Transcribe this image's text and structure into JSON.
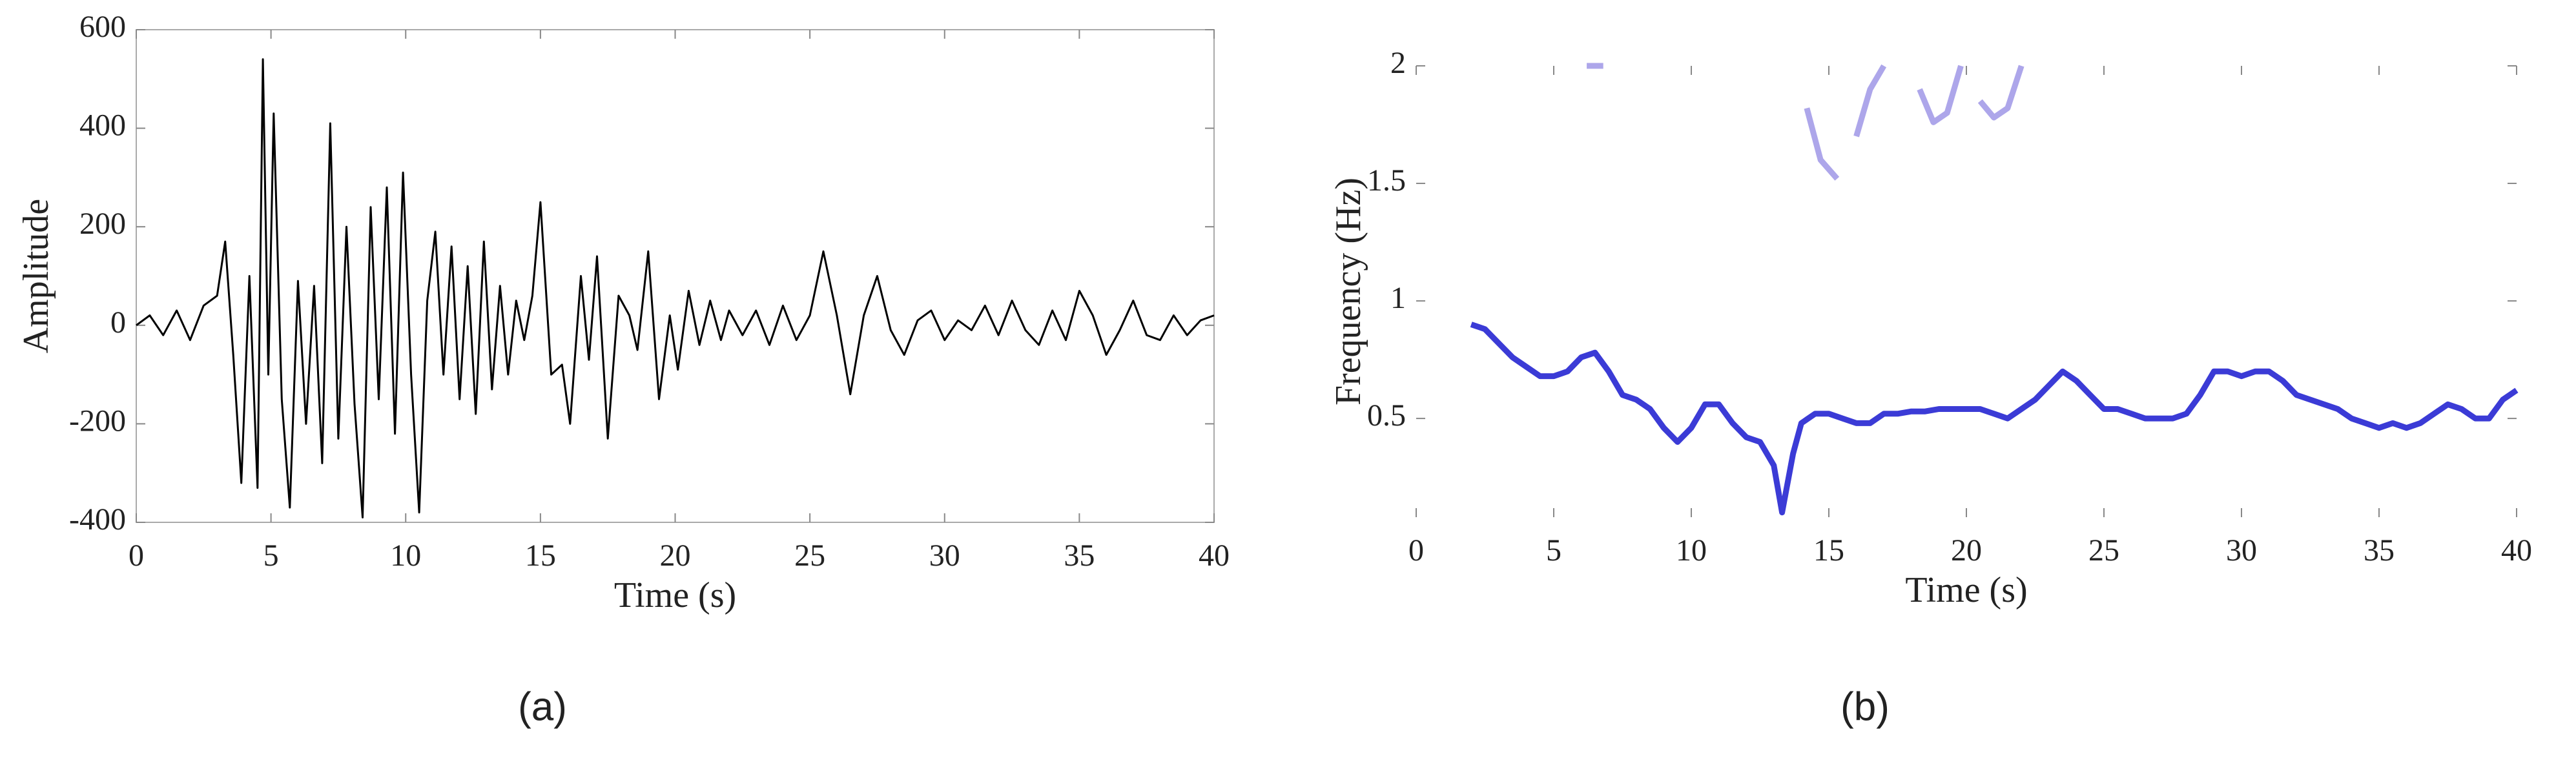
{
  "chart_data": [
    {
      "type": "line",
      "label": "(a)",
      "xlabel": "Time (s)",
      "ylabel": "Amplitude",
      "xlim": [
        0,
        40
      ],
      "ylim": [
        -400,
        600
      ],
      "xticks": [
        0,
        5,
        10,
        15,
        20,
        25,
        30,
        35,
        40
      ],
      "yticks": [
        -400,
        -200,
        0,
        200,
        400,
        600
      ],
      "box": true,
      "grid": false,
      "series": [
        {
          "color": "#000000",
          "x": [
            0,
            0.5,
            1,
            1.5,
            2,
            2.5,
            3,
            3.3,
            3.6,
            3.9,
            4.2,
            4.5,
            4.7,
            4.9,
            5.1,
            5.4,
            5.7,
            6,
            6.3,
            6.6,
            6.9,
            7.2,
            7.5,
            7.8,
            8.1,
            8.4,
            8.7,
            9,
            9.3,
            9.6,
            9.9,
            10.2,
            10.5,
            10.8,
            11.1,
            11.4,
            11.7,
            12,
            12.3,
            12.6,
            12.9,
            13.2,
            13.5,
            13.8,
            14.1,
            14.4,
            14.7,
            15,
            15.4,
            15.8,
            16.1,
            16.5,
            16.8,
            17.1,
            17.5,
            17.9,
            18.3,
            18.6,
            19,
            19.4,
            19.8,
            20.1,
            20.5,
            20.9,
            21.3,
            21.7,
            22,
            22.5,
            23,
            23.5,
            24,
            24.5,
            25,
            25.5,
            26,
            26.5,
            27,
            27.5,
            28,
            28.5,
            29,
            29.5,
            30,
            30.5,
            31,
            31.5,
            32,
            32.5,
            33,
            33.5,
            34,
            34.5,
            35,
            35.5,
            36,
            36.5,
            37,
            37.5,
            38,
            38.5,
            39,
            39.5,
            40
          ],
          "values": [
            0,
            20,
            -20,
            30,
            -30,
            40,
            60,
            170,
            -60,
            -320,
            100,
            -330,
            540,
            -100,
            430,
            -150,
            -370,
            90,
            -200,
            80,
            -280,
            410,
            -230,
            200,
            -160,
            -390,
            240,
            -150,
            280,
            -220,
            310,
            -100,
            -380,
            50,
            190,
            -100,
            160,
            -150,
            120,
            -180,
            170,
            -130,
            80,
            -100,
            50,
            -30,
            60,
            250,
            -100,
            -80,
            -200,
            100,
            -70,
            140,
            -230,
            60,
            20,
            -50,
            150,
            -150,
            20,
            -90,
            70,
            -40,
            50,
            -30,
            30,
            -20,
            30,
            -40,
            40,
            -30,
            20,
            150,
            20,
            -140,
            20,
            100,
            -10,
            -60,
            10,
            30,
            -30,
            10,
            -10,
            40,
            -20,
            50,
            -10,
            -40,
            30,
            -30,
            70,
            20,
            -60,
            -10,
            50,
            -20,
            -30,
            20,
            -20,
            10,
            20
          ]
        }
      ]
    },
    {
      "type": "line",
      "label": "(b)",
      "xlabel": "Time (s)",
      "ylabel": "Frequency (Hz)",
      "xlim": [
        0,
        40
      ],
      "ylim": [
        0.08,
        2
      ],
      "xticks": [
        0,
        5,
        10,
        15,
        20,
        25,
        30,
        35,
        40
      ],
      "yticks": [
        0.5,
        1,
        1.5,
        2
      ],
      "box": false,
      "grid": false,
      "series": [
        {
          "color": "#3b3bd6",
          "x": [
            2,
            2.5,
            3,
            3.5,
            4,
            4.5,
            5,
            5.5,
            6,
            6.5,
            7,
            7.5,
            8,
            8.5,
            9,
            9.5,
            10,
            10.5,
            11,
            11.5,
            12,
            12.5,
            13,
            13.3,
            13.7,
            14,
            14.5,
            15,
            15.5,
            16,
            16.5,
            17,
            17.5,
            18,
            18.5,
            19,
            19.5,
            20,
            20.5,
            21,
            21.5,
            22,
            22.5,
            23,
            23.5,
            24,
            24.5,
            25,
            25.5,
            26,
            26.5,
            27,
            27.5,
            28,
            28.5,
            29,
            29.5,
            30,
            30.5,
            31,
            31.5,
            32,
            32.5,
            33,
            33.5,
            34,
            34.5,
            35,
            35.5,
            36,
            36.5,
            37,
            37.5,
            38,
            38.5,
            39,
            39.5,
            40
          ],
          "values": [
            0.9,
            0.88,
            0.82,
            0.76,
            0.72,
            0.68,
            0.68,
            0.7,
            0.76,
            0.78,
            0.7,
            0.6,
            0.58,
            0.54,
            0.46,
            0.4,
            0.46,
            0.56,
            0.56,
            0.48,
            0.42,
            0.4,
            0.3,
            0.1,
            0.35,
            0.48,
            0.52,
            0.52,
            0.5,
            0.48,
            0.48,
            0.52,
            0.52,
            0.53,
            0.53,
            0.54,
            0.54,
            0.54,
            0.54,
            0.52,
            0.5,
            0.54,
            0.58,
            0.64,
            0.7,
            0.66,
            0.6,
            0.54,
            0.54,
            0.52,
            0.5,
            0.5,
            0.5,
            0.52,
            0.6,
            0.7,
            0.7,
            0.68,
            0.7,
            0.7,
            0.66,
            0.6,
            0.58,
            0.56,
            0.54,
            0.5,
            0.48,
            0.46,
            0.48,
            0.46,
            0.48,
            0.52,
            0.56,
            0.54,
            0.5,
            0.5,
            0.58,
            0.62
          ]
        },
        {
          "color": "#ada6ea",
          "x": [
            6.2,
            6.8,
            10,
            14.2,
            14.7,
            15.3,
            15.7,
            16,
            16.5,
            17,
            17.5,
            18.3,
            18.8,
            19.3,
            19.8,
            20.2,
            20.5,
            21,
            21.5,
            22
          ],
          "values": [
            2,
            2,
            null,
            1.82,
            1.6,
            1.52,
            null,
            1.7,
            1.9,
            2,
            null,
            1.9,
            1.76,
            1.8,
            2,
            null,
            1.85,
            1.78,
            1.82,
            2
          ]
        }
      ]
    }
  ]
}
